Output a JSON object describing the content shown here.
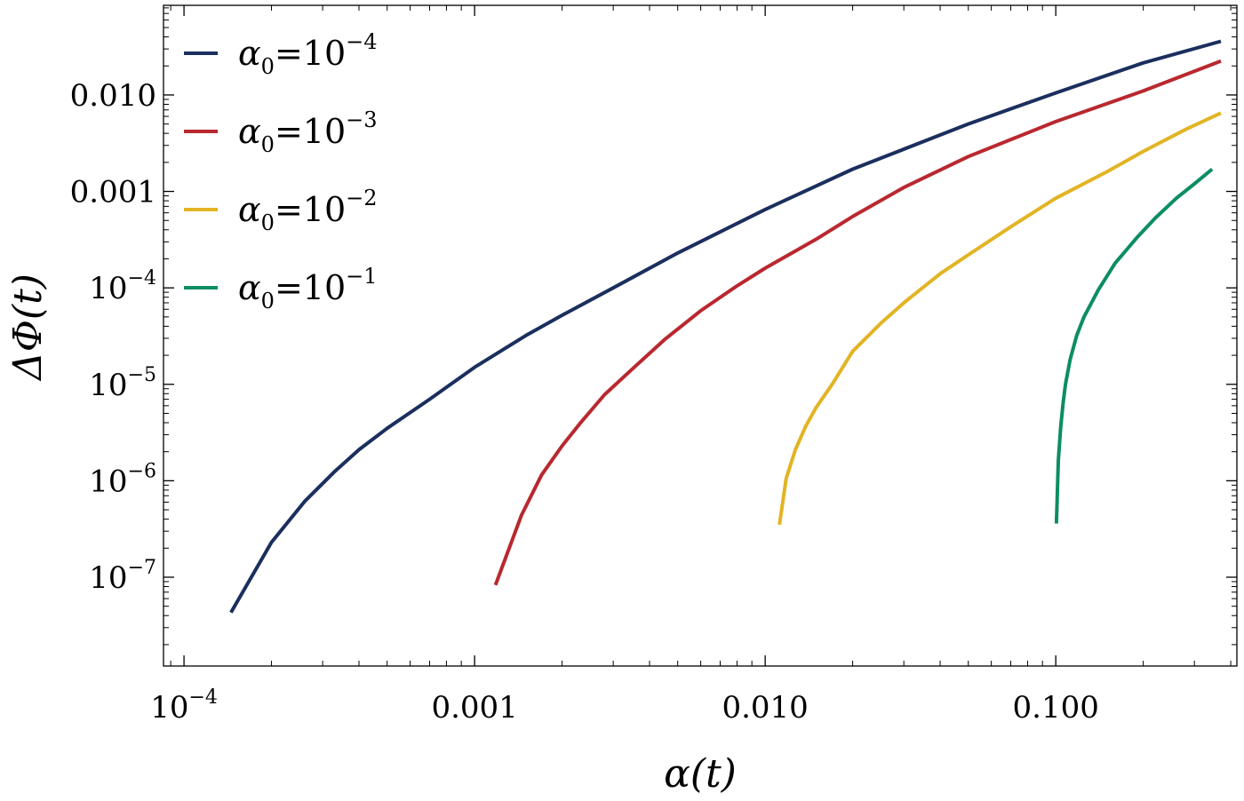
{
  "chart_data": {
    "type": "line",
    "xlabel": "α(t)",
    "ylabel": "ΔΦ(t)",
    "xscale": "log",
    "yscale": "log",
    "xlim": [
      8.5e-05,
      0.42
    ],
    "ylim": [
      1.2e-08,
      0.085
    ],
    "x_ticks": [
      {
        "value": 0.0001,
        "label": "10",
        "exp": "−4"
      },
      {
        "value": 0.001,
        "label": "0.001",
        "exp": ""
      },
      {
        "value": 0.01,
        "label": "0.010",
        "exp": ""
      },
      {
        "value": 0.1,
        "label": "0.100",
        "exp": ""
      }
    ],
    "y_ticks": [
      {
        "value": 1e-07,
        "label": "10",
        "exp": "−7"
      },
      {
        "value": 1e-06,
        "label": "10",
        "exp": "−6"
      },
      {
        "value": 1e-05,
        "label": "10",
        "exp": "−5"
      },
      {
        "value": 0.0001,
        "label": "10",
        "exp": "−4"
      },
      {
        "value": 0.001,
        "label": "0.001",
        "exp": ""
      },
      {
        "value": 0.01,
        "label": "0.010",
        "exp": ""
      }
    ],
    "legend_position": "top-left",
    "grid": false,
    "series": [
      {
        "name": "α0=10−4",
        "name_base": "α",
        "name_sub": "0",
        "name_mid": "=10",
        "name_sup": "−4",
        "color": "#1b2f5e",
        "x": [
          0.000145,
          0.0002,
          0.00026,
          0.00033,
          0.0004,
          0.0005,
          0.0007,
          0.001,
          0.0015,
          0.002,
          0.003,
          0.005,
          0.01,
          0.02,
          0.05,
          0.1,
          0.2,
          0.37
        ],
        "y": [
          4.3e-08,
          2.3e-07,
          6.1e-07,
          1.25e-06,
          2.1e-06,
          3.5e-06,
          7e-06,
          1.5e-05,
          3.2e-05,
          5.2e-05,
          0.0001,
          0.00023,
          0.00065,
          0.0017,
          0.005,
          0.0105,
          0.0215,
          0.036
        ]
      },
      {
        "name": "α0=10−3",
        "name_base": "α",
        "name_sub": "0",
        "name_mid": "=10",
        "name_sup": "−3",
        "color": "#b9282f",
        "x": [
          0.00118,
          0.00145,
          0.0017,
          0.002,
          0.0023,
          0.0028,
          0.0035,
          0.0045,
          0.006,
          0.008,
          0.01,
          0.015,
          0.02,
          0.03,
          0.05,
          0.1,
          0.2,
          0.37
        ],
        "y": [
          8.3e-08,
          4.4e-07,
          1.15e-06,
          2.3e-06,
          3.9e-06,
          7.8e-06,
          1.45e-05,
          2.9e-05,
          5.8e-05,
          0.000105,
          0.00016,
          0.00032,
          0.00055,
          0.0011,
          0.0023,
          0.0053,
          0.011,
          0.0225
        ]
      },
      {
        "name": "α0=10−2",
        "name_base": "α",
        "name_sub": "0",
        "name_mid": "=10",
        "name_sup": "−2",
        "color": "#e2b424",
        "x": [
          0.0112,
          0.0118,
          0.0127,
          0.0138,
          0.015,
          0.017,
          0.02,
          0.025,
          0.03,
          0.04,
          0.05,
          0.07,
          0.1,
          0.15,
          0.2,
          0.28,
          0.37
        ],
        "y": [
          3.5e-07,
          1.05e-06,
          2.1e-06,
          3.7e-06,
          5.8e-06,
          1e-05,
          2.2e-05,
          4.3e-05,
          7e-05,
          0.00014,
          0.00022,
          0.00043,
          0.00085,
          0.0016,
          0.0026,
          0.0044,
          0.0065
        ]
      },
      {
        "name": "α0=10−1",
        "name_base": "α",
        "name_sub": "0",
        "name_mid": "=10",
        "name_sup": "−1",
        "color": "#0c8d63",
        "x": [
          0.1005,
          0.102,
          0.104,
          0.106,
          0.108,
          0.112,
          0.118,
          0.125,
          0.14,
          0.16,
          0.19,
          0.22,
          0.26,
          0.3,
          0.345
        ],
        "y": [
          3.6e-07,
          1.6e-06,
          3.6e-06,
          6.5e-06,
          1e-05,
          1.8e-05,
          3.2e-05,
          5e-05,
          9.5e-05,
          0.00018,
          0.00033,
          0.00053,
          0.00085,
          0.0012,
          0.0017
        ]
      }
    ]
  }
}
